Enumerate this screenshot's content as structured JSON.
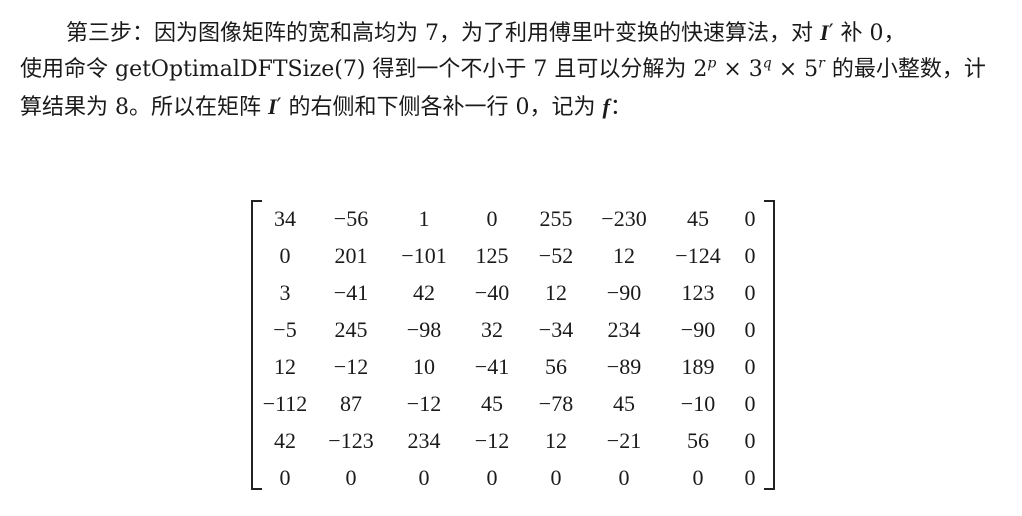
{
  "paragraph": {
    "line1": {
      "text_a": "第三步：因为图像矩阵的宽和高均为 7，为了利用傅里叶变换的快速算法，对 ",
      "symbol_I": "I",
      "prime": "′",
      "text_b": " 补 0，"
    },
    "line2": {
      "text_a": "使用命令 getOptimalDFTSize(7) 得到一个不小于 7 且可以分解为 ",
      "base2": "2",
      "exp_p": "p",
      "times": " × ",
      "base3": "3",
      "exp_q": "q",
      "base5": "5",
      "exp_r": "r",
      "text_b": " 的最小整数，计"
    },
    "line3": {
      "text_a": "算结果为 8。所以在矩阵 ",
      "symbol_I": "I",
      "prime": "′",
      "text_b": " 的右侧和下侧各补一行 0，记为 ",
      "symbol_f": "f",
      "text_c": "："
    }
  },
  "matrix": {
    "rows": [
      [
        "34",
        "−56",
        "1",
        "0",
        "255",
        "−230",
        "45",
        "0"
      ],
      [
        "0",
        "201",
        "−101",
        "125",
        "−52",
        "12",
        "−124",
        "0"
      ],
      [
        "3",
        "−41",
        "42",
        "−40",
        "12",
        "−90",
        "123",
        "0"
      ],
      [
        "−5",
        "245",
        "−98",
        "32",
        "−34",
        "234",
        "−90",
        "0"
      ],
      [
        "12",
        "−12",
        "10",
        "−41",
        "56",
        "−89",
        "189",
        "0"
      ],
      [
        "−112",
        "87",
        "−12",
        "45",
        "−78",
        "45",
        "−10",
        "0"
      ],
      [
        "42",
        "−123",
        "234",
        "−12",
        "12",
        "−21",
        "56",
        "0"
      ],
      [
        "0",
        "0",
        "0",
        "0",
        "0",
        "0",
        "0",
        "0"
      ]
    ]
  }
}
